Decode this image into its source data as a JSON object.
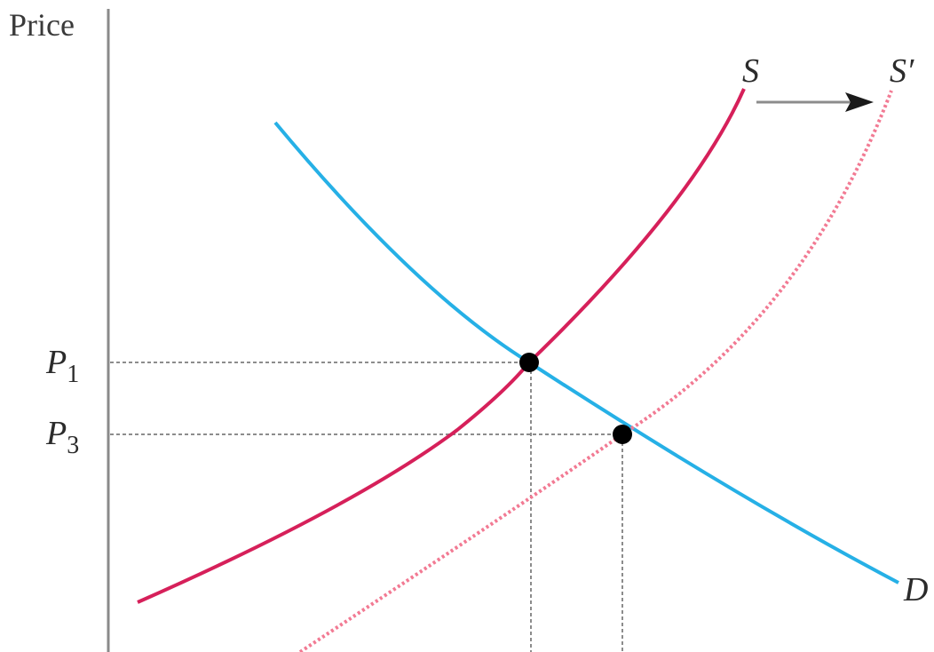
{
  "axes": {
    "y_title": "Price"
  },
  "curves": {
    "supply": {
      "label": "S"
    },
    "supply_shifted": {
      "label": "S′"
    },
    "demand": {
      "label": "D"
    }
  },
  "price_levels": [
    {
      "symbol": "P",
      "sub": "1"
    },
    {
      "symbol": "P",
      "sub": "3"
    }
  ],
  "colors": {
    "axis": "#8a8a8a",
    "supply": "#d6205a",
    "supply_shifted": "#f27a93",
    "demand": "#26b0e6",
    "guide": "#8c8c8c",
    "point": "#000000",
    "arrow": "#1a1a1a"
  },
  "icons": {
    "shift_arrow": "right-arrow-icon"
  }
}
